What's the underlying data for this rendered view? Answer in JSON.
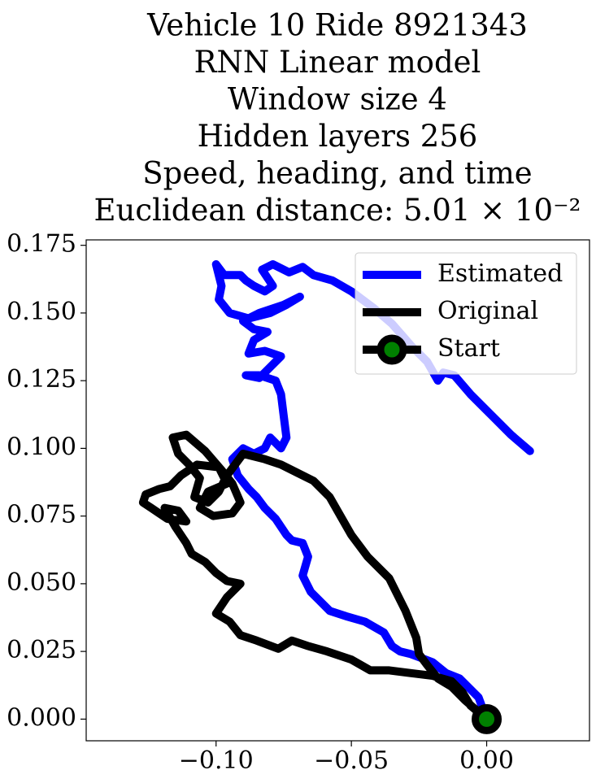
{
  "chart_data": {
    "type": "line",
    "title_lines": [
      "Vehicle 10 Ride 8921343",
      "RNN Linear model",
      "Window size 4",
      "Hidden layers 256",
      "Speed, heading, and time",
      "Euclidean distance: 5.01 × 10⁻²"
    ],
    "xlabel": "",
    "ylabel": "",
    "xlim": [
      -0.148,
      0.038
    ],
    "ylim": [
      -0.008,
      0.177
    ],
    "xticks": [
      -0.1,
      -0.05,
      0.0
    ],
    "xtick_labels": [
      "−0.10",
      "−0.05",
      "0.00"
    ],
    "yticks": [
      0.0,
      0.025,
      0.05,
      0.075,
      0.1,
      0.125,
      0.15,
      0.175
    ],
    "ytick_labels": [
      "0.000",
      "0.025",
      "0.050",
      "0.075",
      "0.100",
      "0.125",
      "0.150",
      "0.175"
    ],
    "grid": false,
    "legend_position": "top-right",
    "colors": {
      "estimated": "#0000ff",
      "original": "#000000",
      "start_marker": "#008000"
    },
    "series": [
      {
        "name": "Estimated",
        "color": "#0000ff",
        "points": [
          [
            0.0,
            0.0
          ],
          [
            -0.003,
            0.008
          ],
          [
            -0.01,
            0.015
          ],
          [
            -0.015,
            0.017
          ],
          [
            -0.02,
            0.021
          ],
          [
            -0.028,
            0.024
          ],
          [
            -0.032,
            0.025
          ],
          [
            -0.035,
            0.027
          ],
          [
            -0.038,
            0.032
          ],
          [
            -0.045,
            0.036
          ],
          [
            -0.052,
            0.038
          ],
          [
            -0.058,
            0.04
          ],
          [
            -0.062,
            0.044
          ],
          [
            -0.065,
            0.047
          ],
          [
            -0.068,
            0.053
          ],
          [
            -0.066,
            0.06
          ],
          [
            -0.068,
            0.065
          ],
          [
            -0.072,
            0.066
          ],
          [
            -0.074,
            0.068
          ],
          [
            -0.078,
            0.074
          ],
          [
            -0.082,
            0.078
          ],
          [
            -0.085,
            0.082
          ],
          [
            -0.088,
            0.085
          ],
          [
            -0.092,
            0.09
          ],
          [
            -0.094,
            0.096
          ],
          [
            -0.09,
            0.1
          ],
          [
            -0.086,
            0.098
          ],
          [
            -0.082,
            0.1
          ],
          [
            -0.08,
            0.104
          ],
          [
            -0.076,
            0.1
          ],
          [
            -0.074,
            0.104
          ],
          [
            -0.075,
            0.112
          ],
          [
            -0.076,
            0.12
          ],
          [
            -0.078,
            0.125
          ],
          [
            -0.084,
            0.127
          ],
          [
            -0.089,
            0.127
          ],
          [
            -0.084,
            0.126
          ],
          [
            -0.08,
            0.13
          ],
          [
            -0.076,
            0.134
          ],
          [
            -0.082,
            0.136
          ],
          [
            -0.088,
            0.135
          ],
          [
            -0.086,
            0.14
          ],
          [
            -0.081,
            0.143
          ],
          [
            -0.086,
            0.144
          ],
          [
            -0.09,
            0.147
          ],
          [
            -0.084,
            0.15
          ],
          [
            -0.075,
            0.153
          ],
          [
            -0.069,
            0.156
          ],
          [
            -0.074,
            0.153
          ],
          [
            -0.08,
            0.15
          ],
          [
            -0.088,
            0.148
          ],
          [
            -0.095,
            0.15
          ],
          [
            -0.099,
            0.155
          ],
          [
            -0.098,
            0.16
          ],
          [
            -0.1,
            0.168
          ],
          [
            -0.097,
            0.164
          ],
          [
            -0.091,
            0.164
          ],
          [
            -0.089,
            0.162
          ],
          [
            -0.086,
            0.16
          ],
          [
            -0.082,
            0.158
          ],
          [
            -0.079,
            0.16
          ],
          [
            -0.083,
            0.166
          ],
          [
            -0.079,
            0.168
          ],
          [
            -0.073,
            0.165
          ],
          [
            -0.068,
            0.167
          ],
          [
            -0.064,
            0.164
          ],
          [
            -0.057,
            0.162
          ],
          [
            -0.05,
            0.158
          ],
          [
            -0.042,
            0.152
          ],
          [
            -0.035,
            0.146
          ],
          [
            -0.028,
            0.138
          ],
          [
            -0.022,
            0.132
          ],
          [
            -0.018,
            0.125
          ],
          [
            -0.016,
            0.128
          ],
          [
            -0.012,
            0.127
          ],
          [
            -0.006,
            0.12
          ],
          [
            0.002,
            0.112
          ],
          [
            0.009,
            0.105
          ],
          [
            0.016,
            0.099
          ]
        ]
      },
      {
        "name": "Original",
        "color": "#000000",
        "points": [
          [
            0.0,
            0.0
          ],
          [
            -0.008,
            0.007
          ],
          [
            -0.013,
            0.012
          ],
          [
            -0.018,
            0.015
          ],
          [
            -0.022,
            0.02
          ],
          [
            -0.025,
            0.024
          ],
          [
            -0.026,
            0.03
          ],
          [
            -0.03,
            0.04
          ],
          [
            -0.036,
            0.052
          ],
          [
            -0.044,
            0.06
          ],
          [
            -0.05,
            0.068
          ],
          [
            -0.054,
            0.075
          ],
          [
            -0.058,
            0.082
          ],
          [
            -0.064,
            0.088
          ],
          [
            -0.07,
            0.091
          ],
          [
            -0.076,
            0.094
          ],
          [
            -0.082,
            0.096
          ],
          [
            -0.09,
            0.098
          ],
          [
            -0.096,
            0.09
          ],
          [
            -0.099,
            0.084
          ],
          [
            -0.103,
            0.08
          ],
          [
            -0.108,
            0.082
          ],
          [
            -0.106,
            0.089
          ],
          [
            -0.11,
            0.094
          ],
          [
            -0.114,
            0.098
          ],
          [
            -0.116,
            0.104
          ],
          [
            -0.111,
            0.105
          ],
          [
            -0.104,
            0.099
          ],
          [
            -0.098,
            0.092
          ],
          [
            -0.094,
            0.087
          ],
          [
            -0.091,
            0.08
          ],
          [
            -0.094,
            0.076
          ],
          [
            -0.101,
            0.075
          ],
          [
            -0.106,
            0.078
          ],
          [
            -0.103,
            0.084
          ],
          [
            -0.096,
            0.087
          ],
          [
            -0.099,
            0.093
          ],
          [
            -0.107,
            0.094
          ],
          [
            -0.113,
            0.09
          ],
          [
            -0.117,
            0.086
          ],
          [
            -0.121,
            0.085
          ],
          [
            -0.126,
            0.083
          ],
          [
            -0.127,
            0.08
          ],
          [
            -0.124,
            0.078
          ],
          [
            -0.118,
            0.074
          ],
          [
            -0.111,
            0.073
          ],
          [
            -0.114,
            0.077
          ],
          [
            -0.119,
            0.078
          ],
          [
            -0.115,
            0.071
          ],
          [
            -0.111,
            0.065
          ],
          [
            -0.109,
            0.061
          ],
          [
            -0.104,
            0.058
          ],
          [
            -0.1,
            0.054
          ],
          [
            -0.096,
            0.051
          ],
          [
            -0.091,
            0.05
          ],
          [
            -0.096,
            0.045
          ],
          [
            -0.1,
            0.039
          ],
          [
            -0.095,
            0.036
          ],
          [
            -0.091,
            0.031
          ],
          [
            -0.085,
            0.029
          ],
          [
            -0.077,
            0.026
          ],
          [
            -0.072,
            0.029
          ],
          [
            -0.066,
            0.027
          ],
          [
            -0.059,
            0.025
          ],
          [
            -0.05,
            0.022
          ],
          [
            -0.043,
            0.018
          ],
          [
            -0.036,
            0.018
          ],
          [
            -0.028,
            0.017
          ],
          [
            -0.02,
            0.016
          ],
          [
            -0.013,
            0.014
          ],
          [
            -0.009,
            0.01
          ],
          [
            -0.006,
            0.005
          ],
          [
            0.0,
            0.0
          ]
        ]
      }
    ],
    "markers": [
      {
        "name": "Start",
        "x": 0.0,
        "y": 0.0,
        "edge_color": "#000000",
        "fill_color": "#008000"
      }
    ]
  }
}
